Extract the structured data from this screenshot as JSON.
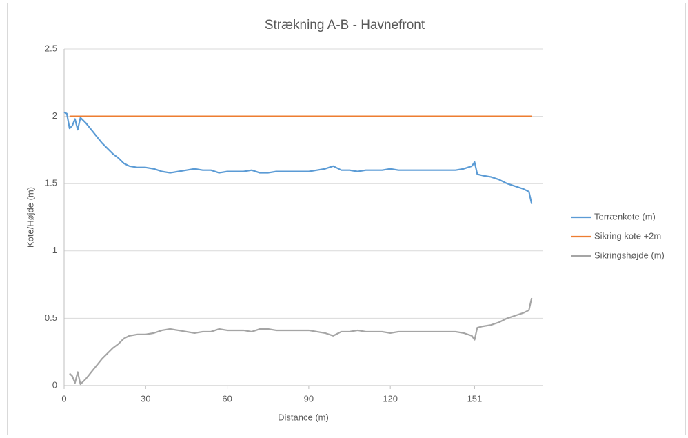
{
  "chart_data": {
    "type": "line",
    "title": "Strækning A-B - Havnefront",
    "xlabel": "Distance (m)",
    "ylabel": "Kote/Højde (m)",
    "x": [
      0,
      1,
      2,
      3,
      4,
      5,
      6,
      7,
      8,
      10,
      12,
      14,
      16,
      18,
      20,
      22,
      24,
      27,
      30,
      33,
      36,
      39,
      42,
      45,
      48,
      51,
      54,
      57,
      60,
      63,
      66,
      69,
      72,
      75,
      78,
      81,
      84,
      87,
      90,
      93,
      96,
      99,
      102,
      105,
      108,
      111,
      114,
      117,
      120,
      123,
      126,
      129,
      132,
      135,
      138,
      141,
      144,
      147,
      150,
      151,
      152,
      154,
      157,
      160,
      163,
      166,
      169,
      171,
      172
    ],
    "series": [
      {
        "name": "Terrænkote (m)",
        "color": "#5b9bd5",
        "values": [
          2.03,
          2.02,
          1.91,
          1.93,
          1.98,
          1.9,
          1.99,
          1.97,
          1.95,
          1.9,
          1.85,
          1.8,
          1.76,
          1.72,
          1.69,
          1.65,
          1.63,
          1.62,
          1.62,
          1.61,
          1.59,
          1.58,
          1.59,
          1.6,
          1.61,
          1.6,
          1.6,
          1.58,
          1.59,
          1.59,
          1.59,
          1.6,
          1.58,
          1.58,
          1.59,
          1.59,
          1.59,
          1.59,
          1.59,
          1.6,
          1.61,
          1.63,
          1.6,
          1.6,
          1.59,
          1.6,
          1.6,
          1.6,
          1.61,
          1.6,
          1.6,
          1.6,
          1.6,
          1.6,
          1.6,
          1.6,
          1.6,
          1.61,
          1.63,
          1.66,
          1.57,
          1.56,
          1.55,
          1.53,
          1.5,
          1.48,
          1.46,
          1.44,
          1.35
        ]
      },
      {
        "name": "Sikring kote +2m",
        "color": "#ed7d31",
        "values": [
          null,
          null,
          2,
          2,
          2,
          2,
          2,
          2,
          2,
          2,
          2,
          2,
          2,
          2,
          2,
          2,
          2,
          2,
          2,
          2,
          2,
          2,
          2,
          2,
          2,
          2,
          2,
          2,
          2,
          2,
          2,
          2,
          2,
          2,
          2,
          2,
          2,
          2,
          2,
          2,
          2,
          2,
          2,
          2,
          2,
          2,
          2,
          2,
          2,
          2,
          2,
          2,
          2,
          2,
          2,
          2,
          2,
          2,
          2,
          2,
          2,
          2,
          2,
          2,
          2,
          2,
          2,
          2,
          2
        ]
      },
      {
        "name": "Sikringshøjde (m)",
        "color": "#a5a5a5",
        "values": [
          null,
          null,
          0.09,
          0.07,
          0.02,
          0.1,
          0.01,
          0.03,
          0.05,
          0.1,
          0.15,
          0.2,
          0.24,
          0.28,
          0.31,
          0.35,
          0.37,
          0.38,
          0.38,
          0.39,
          0.41,
          0.42,
          0.41,
          0.4,
          0.39,
          0.4,
          0.4,
          0.42,
          0.41,
          0.41,
          0.41,
          0.4,
          0.42,
          0.42,
          0.41,
          0.41,
          0.41,
          0.41,
          0.41,
          0.4,
          0.39,
          0.37,
          0.4,
          0.4,
          0.41,
          0.4,
          0.4,
          0.4,
          0.39,
          0.4,
          0.4,
          0.4,
          0.4,
          0.4,
          0.4,
          0.4,
          0.4,
          0.39,
          0.37,
          0.34,
          0.43,
          0.44,
          0.45,
          0.47,
          0.5,
          0.52,
          0.54,
          0.56,
          0.65
        ]
      }
    ],
    "xlim": [
      0,
      176
    ],
    "xticks": [
      0,
      30,
      60,
      90,
      120,
      151
    ],
    "ylim": [
      0,
      2.5
    ],
    "yticks": [
      0,
      0.5,
      1,
      1.5,
      2,
      2.5
    ],
    "grid": true,
    "legend": "right"
  }
}
